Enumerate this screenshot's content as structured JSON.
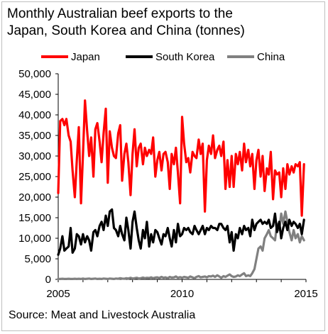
{
  "chart_data": {
    "type": "line",
    "title_line1": "Monthly Australian beef exports to the",
    "title_line2": "Japan, South Korea and China (tonnes)",
    "source": "Source: Meat and Livestock Australia",
    "xlabel": "",
    "ylabel": "",
    "ylim": [
      0,
      50000
    ],
    "xlim": [
      2005,
      2015
    ],
    "y_ticks": [
      0,
      5000,
      10000,
      15000,
      20000,
      25000,
      30000,
      35000,
      40000,
      45000,
      50000
    ],
    "y_tick_labels": [
      "0",
      "5,000",
      "10,000",
      "15,000",
      "20,000",
      "25,000",
      "30,000",
      "35,000",
      "40,000",
      "45,000",
      "50,000"
    ],
    "x_ticks": [
      2005,
      2010,
      2015
    ],
    "x_tick_labels": [
      "2005",
      "2010",
      "2015"
    ],
    "grid": false,
    "legend_position": "top",
    "series": [
      {
        "name": "Japan",
        "color": "#ff0000",
        "x": [
          2005.0,
          2005.08,
          2005.17,
          2005.25,
          2005.33,
          2005.42,
          2005.5,
          2005.58,
          2005.67,
          2005.75,
          2005.83,
          2005.92,
          2006.0,
          2006.08,
          2006.17,
          2006.25,
          2006.33,
          2006.42,
          2006.5,
          2006.58,
          2006.67,
          2006.75,
          2006.83,
          2006.92,
          2007.0,
          2007.08,
          2007.17,
          2007.25,
          2007.33,
          2007.42,
          2007.5,
          2007.58,
          2007.67,
          2007.75,
          2007.83,
          2007.92,
          2008.0,
          2008.08,
          2008.17,
          2008.25,
          2008.33,
          2008.42,
          2008.5,
          2008.58,
          2008.67,
          2008.75,
          2008.83,
          2008.92,
          2009.0,
          2009.08,
          2009.17,
          2009.25,
          2009.33,
          2009.42,
          2009.5,
          2009.58,
          2009.67,
          2009.75,
          2009.83,
          2009.92,
          2010.0,
          2010.08,
          2010.17,
          2010.25,
          2010.33,
          2010.42,
          2010.5,
          2010.58,
          2010.67,
          2010.75,
          2010.83,
          2010.92,
          2011.0,
          2011.08,
          2011.17,
          2011.25,
          2011.33,
          2011.42,
          2011.5,
          2011.58,
          2011.67,
          2011.75,
          2011.83,
          2011.92,
          2012.0,
          2012.08,
          2012.17,
          2012.25,
          2012.33,
          2012.42,
          2012.5,
          2012.58,
          2012.67,
          2012.75,
          2012.83,
          2012.92,
          2013.0,
          2013.08,
          2013.17,
          2013.25,
          2013.33,
          2013.42,
          2013.5,
          2013.58,
          2013.67,
          2013.75,
          2013.83,
          2013.92,
          2014.0,
          2014.08,
          2014.17,
          2014.25,
          2014.33,
          2014.42,
          2014.5,
          2014.58,
          2014.67,
          2014.75,
          2014.83,
          2014.92
        ],
        "values": [
          21000,
          38500,
          39000,
          37500,
          39000,
          35000,
          33500,
          26500,
          20000,
          29000,
          37000,
          18500,
          30500,
          43500,
          36000,
          30000,
          34500,
          25000,
          36500,
          38000,
          33500,
          28500,
          35500,
          41500,
          23500,
          36000,
          32000,
          30000,
          29500,
          35500,
          37500,
          24000,
          30500,
          33000,
          28500,
          20500,
          30500,
          36500,
          27500,
          32000,
          33000,
          28000,
          32000,
          30000,
          31500,
          30500,
          34500,
          25000,
          29000,
          31000,
          26500,
          30500,
          31000,
          28500,
          22000,
          30500,
          28000,
          32000,
          26000,
          18500,
          39500,
          33000,
          28500,
          29500,
          26000,
          31000,
          30000,
          29500,
          34000,
          30500,
          33000,
          16500,
          29000,
          32500,
          30500,
          35000,
          29500,
          31500,
          32500,
          30000,
          33500,
          22000,
          29000,
          22500,
          30000,
          22500,
          30500,
          28000,
          31000,
          26500,
          33000,
          28500,
          31500,
          27500,
          30500,
          22000,
          29000,
          31500,
          25000,
          30000,
          21500,
          27000,
          25500,
          31000,
          19500,
          26500,
          25500,
          26000,
          20000,
          27000,
          22000,
          28000,
          25500,
          27500,
          26000,
          28000,
          27500,
          28500,
          15500,
          28000
        ]
      },
      {
        "name": "South Korea",
        "color": "#000000",
        "x": [
          2005.0,
          2005.08,
          2005.17,
          2005.25,
          2005.33,
          2005.42,
          2005.5,
          2005.58,
          2005.67,
          2005.75,
          2005.83,
          2005.92,
          2006.0,
          2006.08,
          2006.17,
          2006.25,
          2006.33,
          2006.42,
          2006.5,
          2006.58,
          2006.67,
          2006.75,
          2006.83,
          2006.92,
          2007.0,
          2007.08,
          2007.17,
          2007.25,
          2007.33,
          2007.42,
          2007.5,
          2007.58,
          2007.67,
          2007.75,
          2007.83,
          2007.92,
          2008.0,
          2008.08,
          2008.17,
          2008.25,
          2008.33,
          2008.42,
          2008.5,
          2008.58,
          2008.67,
          2008.75,
          2008.83,
          2008.92,
          2009.0,
          2009.08,
          2009.17,
          2009.25,
          2009.33,
          2009.42,
          2009.5,
          2009.58,
          2009.67,
          2009.75,
          2009.83,
          2009.92,
          2010.0,
          2010.08,
          2010.17,
          2010.25,
          2010.33,
          2010.42,
          2010.5,
          2010.58,
          2010.67,
          2010.75,
          2010.83,
          2010.92,
          2011.0,
          2011.08,
          2011.17,
          2011.25,
          2011.33,
          2011.42,
          2011.5,
          2011.58,
          2011.67,
          2011.75,
          2011.83,
          2011.92,
          2012.0,
          2012.08,
          2012.17,
          2012.25,
          2012.33,
          2012.42,
          2012.5,
          2012.58,
          2012.67,
          2012.75,
          2012.83,
          2012.92,
          2013.0,
          2013.08,
          2013.17,
          2013.25,
          2013.33,
          2013.42,
          2013.5,
          2013.58,
          2013.67,
          2013.75,
          2013.83,
          2013.92,
          2014.0,
          2014.08,
          2014.17,
          2014.25,
          2014.33,
          2014.42,
          2014.5,
          2014.58,
          2014.67,
          2014.75,
          2014.83,
          2014.92
        ],
        "values": [
          6000,
          7500,
          10500,
          7000,
          7500,
          8000,
          12500,
          6500,
          7500,
          11000,
          10500,
          8500,
          11000,
          9000,
          10500,
          9500,
          7000,
          11500,
          12000,
          10500,
          13000,
          14000,
          12000,
          15500,
          13000,
          16500,
          17000,
          12500,
          12000,
          10500,
          13000,
          11000,
          9500,
          15000,
          12000,
          7500,
          14000,
          16500,
          12500,
          9500,
          7500,
          12000,
          10000,
          14000,
          8000,
          11000,
          9000,
          12000,
          11500,
          10000,
          8500,
          11000,
          10500,
          12500,
          10000,
          8000,
          12000,
          9000,
          13500,
          10500,
          11000,
          12500,
          12000,
          12500,
          11500,
          11000,
          13000,
          12000,
          11000,
          12000,
          13000,
          11000,
          12500,
          12000,
          13000,
          12500,
          12500,
          12000,
          13500,
          13500,
          12500,
          12000,
          13000,
          9000,
          11500,
          7000,
          11000,
          10000,
          12500,
          11000,
          13000,
          12000,
          12500,
          10500,
          14500,
          12000,
          13500,
          14000,
          14500,
          13500,
          14000,
          13500,
          14500,
          12500,
          13000,
          16000,
          11500,
          14000,
          10000,
          12500,
          14000,
          12000,
          14500,
          13000,
          14000,
          13500,
          12500,
          13500,
          11000,
          14500
        ]
      },
      {
        "name": "China",
        "color": "#808080",
        "x": [
          2005.0,
          2005.08,
          2005.17,
          2005.25,
          2005.33,
          2005.42,
          2005.5,
          2005.58,
          2005.67,
          2005.75,
          2005.83,
          2005.92,
          2006.0,
          2006.08,
          2006.17,
          2006.25,
          2006.33,
          2006.42,
          2006.5,
          2006.58,
          2006.67,
          2006.75,
          2006.83,
          2006.92,
          2007.0,
          2007.08,
          2007.17,
          2007.25,
          2007.33,
          2007.42,
          2007.5,
          2007.58,
          2007.67,
          2007.75,
          2007.83,
          2007.92,
          2008.0,
          2008.08,
          2008.17,
          2008.25,
          2008.33,
          2008.42,
          2008.5,
          2008.58,
          2008.67,
          2008.75,
          2008.83,
          2008.92,
          2009.0,
          2009.08,
          2009.17,
          2009.25,
          2009.33,
          2009.42,
          2009.5,
          2009.58,
          2009.67,
          2009.75,
          2009.83,
          2009.92,
          2010.0,
          2010.08,
          2010.17,
          2010.25,
          2010.33,
          2010.42,
          2010.5,
          2010.58,
          2010.67,
          2010.75,
          2010.83,
          2010.92,
          2011.0,
          2011.08,
          2011.17,
          2011.25,
          2011.33,
          2011.42,
          2011.5,
          2011.58,
          2011.67,
          2011.75,
          2011.83,
          2011.92,
          2012.0,
          2012.08,
          2012.17,
          2012.25,
          2012.33,
          2012.42,
          2012.5,
          2012.58,
          2012.67,
          2012.75,
          2012.83,
          2012.92,
          2013.0,
          2013.08,
          2013.17,
          2013.25,
          2013.33,
          2013.42,
          2013.5,
          2013.58,
          2013.67,
          2013.75,
          2013.83,
          2013.92,
          2014.0,
          2014.08,
          2014.17,
          2014.25,
          2014.33,
          2014.42,
          2014.5,
          2014.58,
          2014.67,
          2014.75,
          2014.83,
          2014.92
        ],
        "values": [
          100,
          100,
          150,
          100,
          100,
          150,
          100,
          100,
          150,
          100,
          150,
          100,
          200,
          100,
          150,
          200,
          100,
          150,
          200,
          100,
          150,
          100,
          200,
          150,
          100,
          200,
          150,
          100,
          200,
          150,
          300,
          200,
          150,
          300,
          200,
          400,
          200,
          300,
          400,
          250,
          300,
          450,
          300,
          400,
          350,
          500,
          300,
          450,
          500,
          350,
          600,
          400,
          500,
          300,
          600,
          450,
          500,
          700,
          400,
          550,
          400,
          600,
          500,
          400,
          700,
          500,
          300,
          600,
          800,
          500,
          600,
          700,
          500,
          800,
          700,
          900,
          600,
          1000,
          700,
          400,
          800,
          600,
          900,
          1200,
          800,
          600,
          700,
          1000,
          800,
          1200,
          1500,
          800,
          1000,
          800,
          1500,
          2500,
          5000,
          7500,
          8000,
          7000,
          10000,
          11000,
          12000,
          10500,
          10000,
          9500,
          13500,
          12000,
          16000,
          13500,
          16500,
          14000,
          11500,
          9500,
          12000,
          10000,
          11000,
          9000,
          10500,
          9500
        ]
      }
    ]
  }
}
